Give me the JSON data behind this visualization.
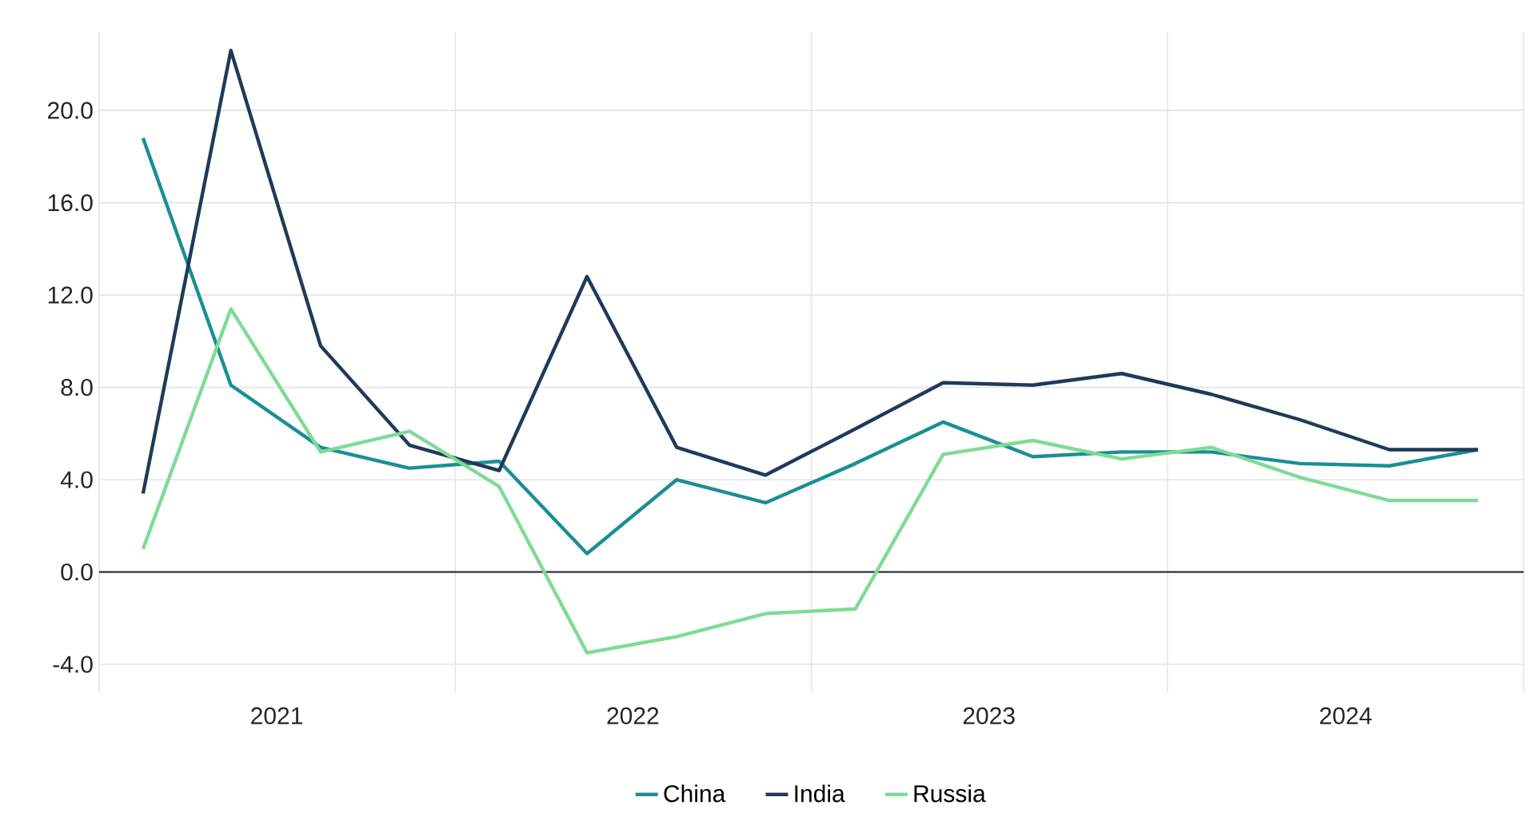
{
  "chart_data": {
    "type": "line",
    "x": [
      "2021-02-15",
      "2021-05-16",
      "2021-08-16",
      "2021-11-15",
      "2022-02-15",
      "2022-05-16",
      "2022-08-16",
      "2022-11-15",
      "2023-02-15",
      "2023-05-16",
      "2023-08-16",
      "2023-11-15",
      "2024-02-15",
      "2024-05-16",
      "2024-08-16",
      "2024-11-15"
    ],
    "series": [
      {
        "name": "China",
        "color": "#1a8f94",
        "values": [
          18.8,
          8.1,
          5.4,
          4.5,
          4.8,
          0.8,
          4.0,
          3.0,
          4.7,
          6.5,
          5.0,
          5.2,
          5.2,
          4.7,
          4.6,
          5.3
        ]
      },
      {
        "name": "India",
        "color": "#1f3a5a",
        "values": [
          3.4,
          22.6,
          9.8,
          5.5,
          4.4,
          12.8,
          5.4,
          4.2,
          6.2,
          8.2,
          8.1,
          8.6,
          7.7,
          6.6,
          5.3,
          5.3
        ]
      },
      {
        "name": "Russia",
        "color": "#7fdb94",
        "values": [
          1.0,
          11.4,
          5.2,
          6.1,
          3.7,
          -3.5,
          -2.8,
          -1.8,
          -1.6,
          5.1,
          5.7,
          4.9,
          5.4,
          4.1,
          3.1,
          3.1
        ]
      }
    ],
    "xlim": [
      "2021-01-01",
      "2025-01-01"
    ],
    "xticks": [
      {
        "value": "2021-01-01",
        "label": null
      },
      {
        "value": "2021-07-02",
        "label": "2021"
      },
      {
        "value": "2022-01-01",
        "label": null
      },
      {
        "value": "2022-07-02",
        "label": "2022"
      },
      {
        "value": "2023-01-01",
        "label": null
      },
      {
        "value": "2023-07-02",
        "label": "2023"
      },
      {
        "value": "2024-01-01",
        "label": null
      },
      {
        "value": "2024-07-02",
        "label": "2024"
      },
      {
        "value": "2025-01-01",
        "label": null
      }
    ],
    "ylim": [
      -5.2,
      23.4
    ],
    "yticks": [
      {
        "value": -4,
        "label": "-4.0"
      },
      {
        "value": 0,
        "label": "0.0"
      },
      {
        "value": 4,
        "label": "4.0"
      },
      {
        "value": 8,
        "label": "8.0"
      },
      {
        "value": 12,
        "label": "12.0"
      },
      {
        "value": 16,
        "label": "16.0"
      },
      {
        "value": 20,
        "label": "20.0"
      }
    ],
    "ref_lines": [
      {
        "axis": "y",
        "value": 0,
        "color": "#1a1a2e"
      }
    ],
    "grid": true,
    "legend": "bottom",
    "marker": "none",
    "line_style": "solid"
  }
}
